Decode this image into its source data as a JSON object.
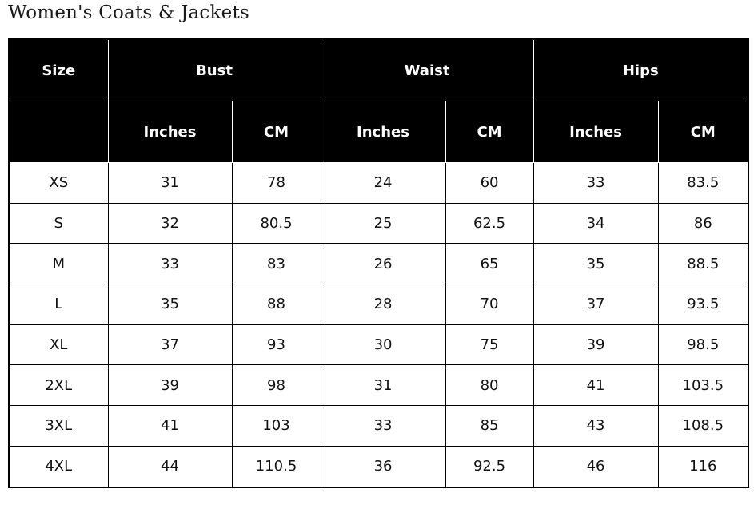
{
  "title": "Women's Coats & Jackets",
  "table": {
    "header_top": [
      "Size",
      "Bust",
      "Waist",
      "Hips"
    ],
    "header_sub": [
      "",
      "Inches",
      "CM",
      "Inches",
      "CM",
      "Inches",
      "CM"
    ],
    "rows": [
      [
        "XS",
        "31",
        "78",
        "24",
        "60",
        "33",
        "83.5"
      ],
      [
        "S",
        "32",
        "80.5",
        "25",
        "62.5",
        "34",
        "86"
      ],
      [
        "M",
        "33",
        "83",
        "26",
        "65",
        "35",
        "88.5"
      ],
      [
        "L",
        "35",
        "88",
        "28",
        "70",
        "37",
        "93.5"
      ],
      [
        "XL",
        "37",
        "93",
        "30",
        "75",
        "39",
        "98.5"
      ],
      [
        "2XL",
        "39",
        "98",
        "31",
        "80",
        "41",
        "103.5"
      ],
      [
        "3XL",
        "41",
        "103",
        "33",
        "85",
        "43",
        "108.5"
      ],
      [
        "4XL",
        "44",
        "110.5",
        "36",
        "92.5",
        "46",
        "116"
      ]
    ]
  }
}
